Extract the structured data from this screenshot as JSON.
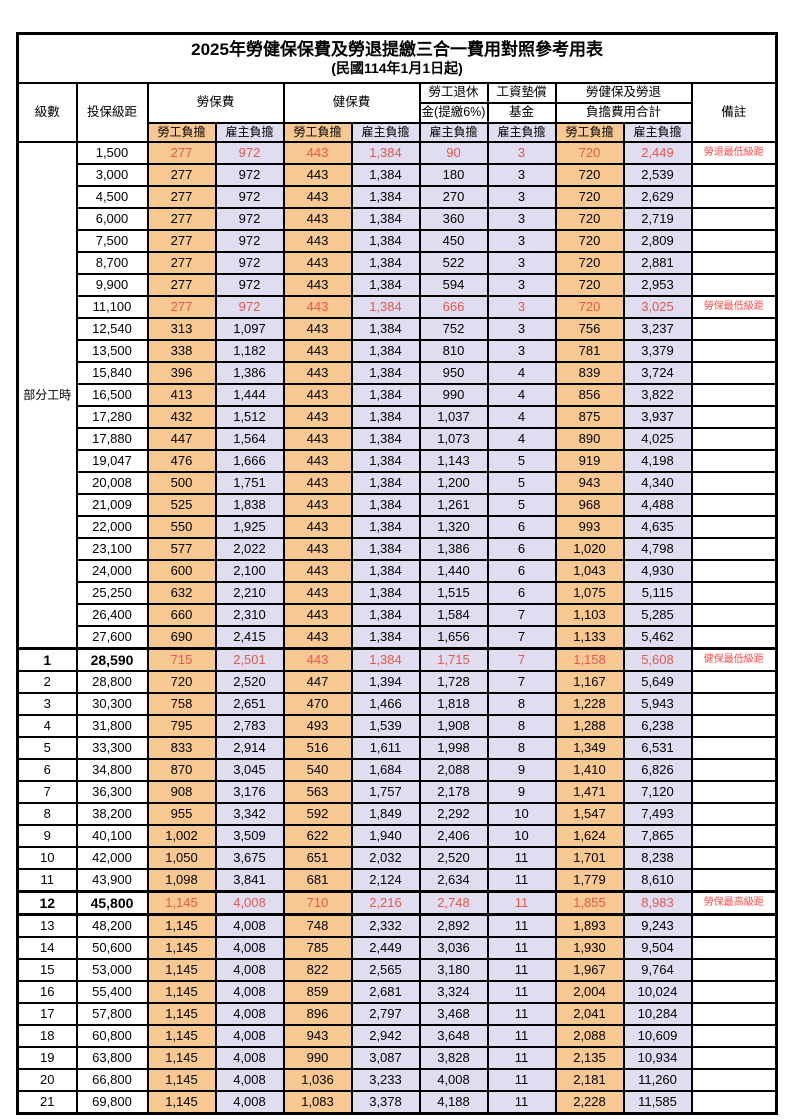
{
  "title": "2025年勞健保保費及勞退提繳三合一費用對照參考用表",
  "subtitle": "(民國114年1月1日起)",
  "colors": {
    "worker_column_fill": "#F8C893",
    "employer_column_fill": "#DFDDEF",
    "highlight_value_red": "#E0584E",
    "note_red": "#FF4A4A",
    "border": "#000000"
  },
  "header": {
    "level": "級數",
    "bracket": "投保級距",
    "labor_insurance": "勞保費",
    "health_insurance": "健保費",
    "pension_line1": "勞工退休",
    "pension_line2": "金(提繳6%)",
    "wage_fund_line1": "工資墊償",
    "wage_fund_line2": "基金",
    "total_line1": "勞健保及勞退",
    "total_line2": "負擔費用合計",
    "worker_burden": "勞工負擔",
    "employer_burden": "雇主負擔",
    "note": "備註"
  },
  "part_time_label": "部分工時",
  "part_time_rowspan": 23,
  "row_format": [
    "level",
    "bracket",
    "labor_worker",
    "labor_employer",
    "health_worker",
    "health_employer",
    "pension_employer",
    "fund_employer",
    "total_worker",
    "total_employer",
    "note",
    "style"
  ],
  "rows": [
    [
      "",
      "1,500",
      "277",
      "972",
      "443",
      "1,384",
      "90",
      "3",
      "720",
      "2,449",
      "勞退最低級距",
      "red"
    ],
    [
      "",
      "3,000",
      "277",
      "972",
      "443",
      "1,384",
      "180",
      "3",
      "720",
      "2,539",
      "",
      ""
    ],
    [
      "",
      "4,500",
      "277",
      "972",
      "443",
      "1,384",
      "270",
      "3",
      "720",
      "2,629",
      "",
      ""
    ],
    [
      "",
      "6,000",
      "277",
      "972",
      "443",
      "1,384",
      "360",
      "3",
      "720",
      "2,719",
      "",
      ""
    ],
    [
      "",
      "7,500",
      "277",
      "972",
      "443",
      "1,384",
      "450",
      "3",
      "720",
      "2,809",
      "",
      ""
    ],
    [
      "",
      "8,700",
      "277",
      "972",
      "443",
      "1,384",
      "522",
      "3",
      "720",
      "2,881",
      "",
      ""
    ],
    [
      "",
      "9,900",
      "277",
      "972",
      "443",
      "1,384",
      "594",
      "3",
      "720",
      "2,953",
      "",
      ""
    ],
    [
      "",
      "11,100",
      "277",
      "972",
      "443",
      "1,384",
      "666",
      "3",
      "720",
      "3,025",
      "勞保最低級距",
      "red"
    ],
    [
      "",
      "12,540",
      "313",
      "1,097",
      "443",
      "1,384",
      "752",
      "3",
      "756",
      "3,237",
      "",
      ""
    ],
    [
      "",
      "13,500",
      "338",
      "1,182",
      "443",
      "1,384",
      "810",
      "3",
      "781",
      "3,379",
      "",
      ""
    ],
    [
      "",
      "15,840",
      "396",
      "1,386",
      "443",
      "1,384",
      "950",
      "4",
      "839",
      "3,724",
      "",
      ""
    ],
    [
      "",
      "16,500",
      "413",
      "1,444",
      "443",
      "1,384",
      "990",
      "4",
      "856",
      "3,822",
      "",
      ""
    ],
    [
      "",
      "17,280",
      "432",
      "1,512",
      "443",
      "1,384",
      "1,037",
      "4",
      "875",
      "3,937",
      "",
      ""
    ],
    [
      "",
      "17,880",
      "447",
      "1,564",
      "443",
      "1,384",
      "1,073",
      "4",
      "890",
      "4,025",
      "",
      ""
    ],
    [
      "",
      "19,047",
      "476",
      "1,666",
      "443",
      "1,384",
      "1,143",
      "5",
      "919",
      "4,198",
      "",
      ""
    ],
    [
      "",
      "20,008",
      "500",
      "1,751",
      "443",
      "1,384",
      "1,200",
      "5",
      "943",
      "4,340",
      "",
      ""
    ],
    [
      "",
      "21,009",
      "525",
      "1,838",
      "443",
      "1,384",
      "1,261",
      "5",
      "968",
      "4,488",
      "",
      ""
    ],
    [
      "",
      "22,000",
      "550",
      "1,925",
      "443",
      "1,384",
      "1,320",
      "6",
      "993",
      "4,635",
      "",
      ""
    ],
    [
      "",
      "23,100",
      "577",
      "2,022",
      "443",
      "1,384",
      "1,386",
      "6",
      "1,020",
      "4,798",
      "",
      ""
    ],
    [
      "",
      "24,000",
      "600",
      "2,100",
      "443",
      "1,384",
      "1,440",
      "6",
      "1,043",
      "4,930",
      "",
      ""
    ],
    [
      "",
      "25,250",
      "632",
      "2,210",
      "443",
      "1,384",
      "1,515",
      "6",
      "1,075",
      "5,115",
      "",
      ""
    ],
    [
      "",
      "26,400",
      "660",
      "2,310",
      "443",
      "1,384",
      "1,584",
      "7",
      "1,103",
      "5,285",
      "",
      ""
    ],
    [
      "",
      "27,600",
      "690",
      "2,415",
      "443",
      "1,384",
      "1,656",
      "7",
      "1,133",
      "5,462",
      "",
      ""
    ],
    [
      "1",
      "28,590",
      "715",
      "2,501",
      "443",
      "1,384",
      "1,715",
      "7",
      "1,158",
      "5,608",
      "健保最低級距",
      "red bold thick"
    ],
    [
      "2",
      "28,800",
      "720",
      "2,520",
      "447",
      "1,394",
      "1,728",
      "7",
      "1,167",
      "5,649",
      "",
      ""
    ],
    [
      "3",
      "30,300",
      "758",
      "2,651",
      "470",
      "1,466",
      "1,818",
      "8",
      "1,228",
      "5,943",
      "",
      ""
    ],
    [
      "4",
      "31,800",
      "795",
      "2,783",
      "493",
      "1,539",
      "1,908",
      "8",
      "1,288",
      "6,238",
      "",
      ""
    ],
    [
      "5",
      "33,300",
      "833",
      "2,914",
      "516",
      "1,611",
      "1,998",
      "8",
      "1,349",
      "6,531",
      "",
      ""
    ],
    [
      "6",
      "34,800",
      "870",
      "3,045",
      "540",
      "1,684",
      "2,088",
      "9",
      "1,410",
      "6,826",
      "",
      ""
    ],
    [
      "7",
      "36,300",
      "908",
      "3,176",
      "563",
      "1,757",
      "2,178",
      "9",
      "1,471",
      "7,120",
      "",
      ""
    ],
    [
      "8",
      "38,200",
      "955",
      "3,342",
      "592",
      "1,849",
      "2,292",
      "10",
      "1,547",
      "7,493",
      "",
      ""
    ],
    [
      "9",
      "40,100",
      "1,002",
      "3,509",
      "622",
      "1,940",
      "2,406",
      "10",
      "1,624",
      "7,865",
      "",
      ""
    ],
    [
      "10",
      "42,000",
      "1,050",
      "3,675",
      "651",
      "2,032",
      "2,520",
      "11",
      "1,701",
      "8,238",
      "",
      ""
    ],
    [
      "11",
      "43,900",
      "1,098",
      "3,841",
      "681",
      "2,124",
      "2,634",
      "11",
      "1,779",
      "8,610",
      "",
      ""
    ],
    [
      "12",
      "45,800",
      "1,145",
      "4,008",
      "710",
      "2,216",
      "2,748",
      "11",
      "1,855",
      "8,983",
      "勞保最高級距",
      "red bold thick thickbottom"
    ],
    [
      "13",
      "48,200",
      "1,145",
      "4,008",
      "748",
      "2,332",
      "2,892",
      "11",
      "1,893",
      "9,243",
      "",
      ""
    ],
    [
      "14",
      "50,600",
      "1,145",
      "4,008",
      "785",
      "2,449",
      "3,036",
      "11",
      "1,930",
      "9,504",
      "",
      ""
    ],
    [
      "15",
      "53,000",
      "1,145",
      "4,008",
      "822",
      "2,565",
      "3,180",
      "11",
      "1,967",
      "9,764",
      "",
      ""
    ],
    [
      "16",
      "55,400",
      "1,145",
      "4,008",
      "859",
      "2,681",
      "3,324",
      "11",
      "2,004",
      "10,024",
      "",
      ""
    ],
    [
      "17",
      "57,800",
      "1,145",
      "4,008",
      "896",
      "2,797",
      "3,468",
      "11",
      "2,041",
      "10,284",
      "",
      ""
    ],
    [
      "18",
      "60,800",
      "1,145",
      "4,008",
      "943",
      "2,942",
      "3,648",
      "11",
      "2,088",
      "10,609",
      "",
      ""
    ],
    [
      "19",
      "63,800",
      "1,145",
      "4,008",
      "990",
      "3,087",
      "3,828",
      "11",
      "2,135",
      "10,934",
      "",
      ""
    ],
    [
      "20",
      "66,800",
      "1,145",
      "4,008",
      "1,036",
      "3,233",
      "4,008",
      "11",
      "2,181",
      "11,260",
      "",
      ""
    ],
    [
      "21",
      "69,800",
      "1,145",
      "4,008",
      "1,083",
      "3,378",
      "4,188",
      "11",
      "2,228",
      "11,585",
      "",
      ""
    ]
  ]
}
